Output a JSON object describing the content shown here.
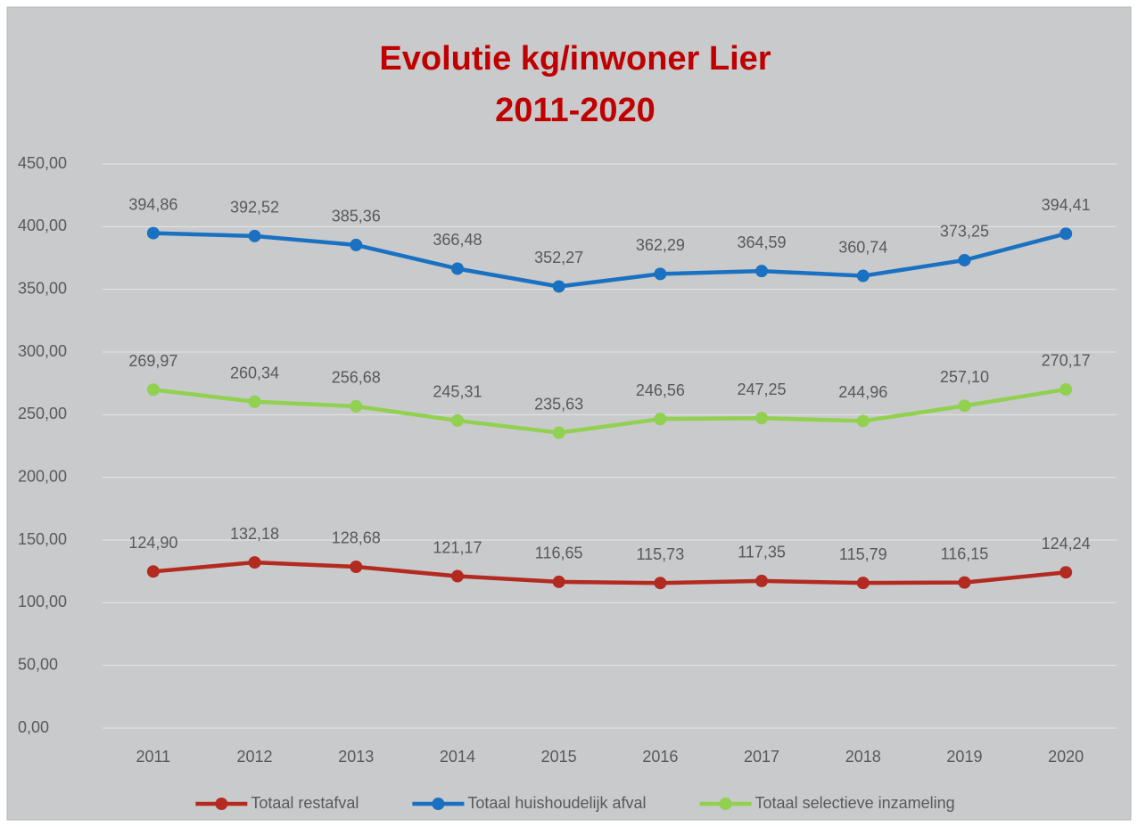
{
  "chart_data": {
    "type": "line",
    "title": "Evolutie kg/inwoner Lier",
    "subtitle": "2011-2020",
    "categories": [
      "2011",
      "2012",
      "2013",
      "2014",
      "2015",
      "2016",
      "2017",
      "2018",
      "2019",
      "2020"
    ],
    "series": [
      {
        "name": "Totaal restafval",
        "color": "#b32a21",
        "values": [
          124.9,
          132.18,
          128.68,
          121.17,
          116.65,
          115.73,
          117.35,
          115.79,
          116.15,
          124.24
        ],
        "value_labels": [
          "124,90",
          "132,18",
          "128,68",
          "121,17",
          "116,65",
          "115,73",
          "117,35",
          "115,79",
          "116,15",
          "124,24"
        ]
      },
      {
        "name": "Totaal huishoudelijk afval",
        "color": "#1b71c1",
        "values": [
          394.86,
          392.52,
          385.36,
          366.48,
          352.27,
          362.29,
          364.59,
          360.74,
          373.25,
          394.41
        ],
        "value_labels": [
          "394,86",
          "392,52",
          "385,36",
          "366,48",
          "352,27",
          "362,29",
          "364,59",
          "360,74",
          "373,25",
          "394,41"
        ]
      },
      {
        "name": "Totaal selectieve inzameling",
        "color": "#92d050",
        "values": [
          269.97,
          260.34,
          256.68,
          245.31,
          235.63,
          246.56,
          247.25,
          244.96,
          257.1,
          270.17
        ],
        "value_labels": [
          "269,97",
          "260,34",
          "256,68",
          "245,31",
          "235,63",
          "246,56",
          "247,25",
          "244,96",
          "257,10",
          "270,17"
        ]
      }
    ],
    "ylim": [
      0,
      450
    ],
    "yticks": [
      {
        "value": 0,
        "label": "0,00"
      },
      {
        "value": 50,
        "label": "50,00"
      },
      {
        "value": 100,
        "label": "100,00"
      },
      {
        "value": 150,
        "label": "150,00"
      },
      {
        "value": 200,
        "label": "200,00"
      },
      {
        "value": 250,
        "label": "250,00"
      },
      {
        "value": 300,
        "label": "300,00"
      },
      {
        "value": 350,
        "label": "350,00"
      },
      {
        "value": 400,
        "label": "400,00"
      },
      {
        "value": 450,
        "label": "450,00"
      }
    ],
    "grid": true,
    "legend": "bottom"
  }
}
